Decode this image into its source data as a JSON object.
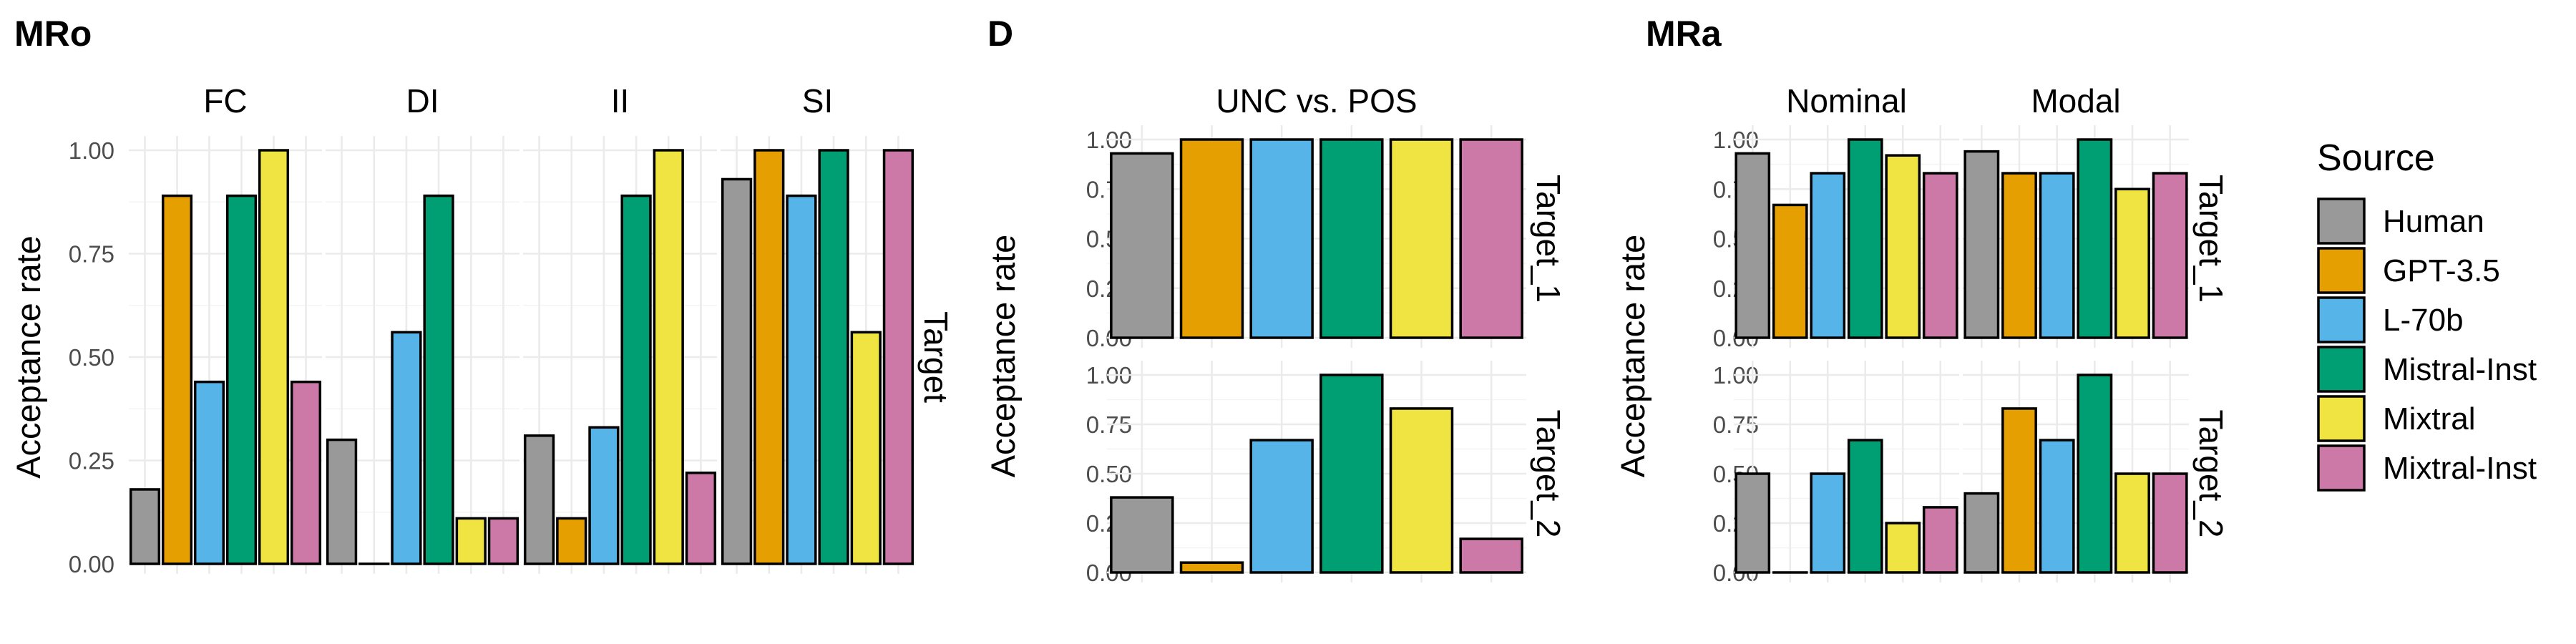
{
  "legend": {
    "title": "Source",
    "items": [
      {
        "label": "Human",
        "color": "#999999"
      },
      {
        "label": "GPT-3.5",
        "color": "#E69F00"
      },
      {
        "label": "L-70b",
        "color": "#56B4E9"
      },
      {
        "label": "Mistral-Inst",
        "color": "#009E73"
      },
      {
        "label": "Mixtral",
        "color": "#F0E442"
      },
      {
        "label": "Mixtral-Inst",
        "color": "#CC79A7"
      }
    ]
  },
  "chart_data": [
    {
      "type": "bar",
      "panel_label": "MRo",
      "ylabel": "Acceptance rate",
      "ylim": [
        0,
        1
      ],
      "yticks": [
        "0.00",
        "0.25",
        "0.50",
        "0.75",
        "1.00"
      ],
      "row_strip": "Target",
      "facets": [
        {
          "name": "FC",
          "values": [
            0.18,
            0.89,
            0.44,
            0.89,
            1.0,
            0.44
          ]
        },
        {
          "name": "DI",
          "values": [
            0.3,
            0.0,
            0.56,
            0.89,
            0.11,
            0.11
          ]
        },
        {
          "name": "II",
          "values": [
            0.31,
            0.11,
            0.33,
            0.89,
            1.0,
            0.22
          ]
        },
        {
          "name": "SI",
          "values": [
            0.93,
            1.0,
            0.89,
            1.0,
            0.56,
            1.0
          ]
        }
      ]
    },
    {
      "type": "bar",
      "panel_label": "D",
      "ylabel": "Acceptance rate",
      "ylim": [
        0,
        1
      ],
      "yticks": [
        "0.00",
        "0.25",
        "0.50",
        "0.75",
        "1.00"
      ],
      "column_facets": [
        "UNC vs. POS"
      ],
      "row_facets": [
        "Target_1",
        "Target_2"
      ],
      "values": [
        [
          [
            0.93,
            1.0,
            1.0,
            1.0,
            1.0,
            1.0
          ]
        ],
        [
          [
            0.38,
            0.05,
            0.67,
            1.0,
            0.83,
            0.17
          ]
        ]
      ]
    },
    {
      "type": "bar",
      "panel_label": "MRa",
      "ylabel": "Acceptance rate",
      "ylim": [
        0,
        1
      ],
      "yticks": [
        "0.00",
        "0.25",
        "0.50",
        "0.75",
        "1.00"
      ],
      "column_facets": [
        "Nominal",
        "Modal"
      ],
      "row_facets": [
        "Target_1",
        "Target_2"
      ],
      "values": [
        [
          [
            0.93,
            0.67,
            0.83,
            1.0,
            0.92,
            0.83
          ],
          [
            0.94,
            0.83,
            0.83,
            1.0,
            0.75,
            0.83
          ]
        ],
        [
          [
            0.5,
            0.0,
            0.5,
            0.67,
            0.25,
            0.33
          ],
          [
            0.4,
            0.83,
            0.67,
            1.0,
            0.5,
            0.5
          ]
        ]
      ]
    }
  ]
}
